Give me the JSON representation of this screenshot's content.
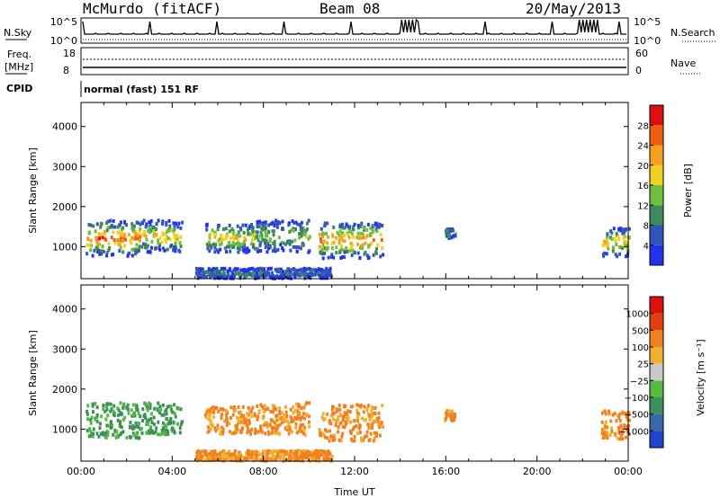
{
  "header": {
    "station": "McMurdo (fitACF)",
    "beam": "Beam 08",
    "date": "20/May/2013"
  },
  "nsky_panel": {
    "left_label": "N.Sky",
    "right_label": "N.Search",
    "left_ticks": [
      "10^5",
      "10^0"
    ],
    "right_ticks": [
      "10^5",
      "10^0"
    ]
  },
  "freq_panel": {
    "left_label_top": "Freq.",
    "left_label_bottom": "[MHz]",
    "right_label": "Nave",
    "left_ticks": [
      "18",
      "8"
    ],
    "right_ticks": [
      "60",
      "0"
    ]
  },
  "cpid": {
    "label": "CPID",
    "mode": "normal (fast) 151 RF"
  },
  "chart_data": [
    {
      "type": "heatmap",
      "title": "",
      "ylabel": "Slant Range [km]",
      "xlabel": "",
      "y_ticks": [
        "1000",
        "2000",
        "3000",
        "4000"
      ],
      "ylim": [
        200,
        4600
      ],
      "xlim": [
        "00:00",
        "24:00"
      ],
      "colorbar": {
        "label": "Power [dB]",
        "ticks": [
          "4",
          "8",
          "12",
          "16",
          "20",
          "24",
          "28"
        ],
        "colors": [
          "#2233ee",
          "#3355bb",
          "#3f8a5a",
          "#6fbf3f",
          "#f0d020",
          "#f4a020",
          "#ee6010",
          "#dd1010"
        ]
      }
    },
    {
      "type": "heatmap",
      "title": "",
      "ylabel": "Slant Range [km]",
      "xlabel": "Time UT",
      "y_ticks": [
        "1000",
        "2000",
        "3000",
        "4000"
      ],
      "ylim": [
        200,
        4600
      ],
      "x_ticks": [
        "00:00",
        "04:00",
        "08:00",
        "12:00",
        "16:00",
        "20:00",
        "00:00"
      ],
      "colorbar": {
        "label": "Velocity [m s⁻¹]",
        "ticks": [
          "1000",
          "500",
          "100",
          "25",
          "−25",
          "−100",
          "−500",
          "−1000"
        ],
        "colors": [
          "#2244cc",
          "#3a66aa",
          "#3f8f5a",
          "#55bb40",
          "#c8c8c8",
          "#f0b030",
          "#f08020",
          "#e04010",
          "#dd1010"
        ]
      }
    }
  ],
  "colors": {
    "power_scale": [
      "#2233ee",
      "#3355bb",
      "#3f8a5a",
      "#6fbf3f",
      "#f0d020",
      "#f4a020",
      "#ee6010",
      "#dd1010"
    ],
    "velocity_scale": [
      "#2244cc",
      "#3a66aa",
      "#3f8f5a",
      "#55bb40",
      "#c8c8c8",
      "#f0b030",
      "#f08020",
      "#e04010",
      "#dd1010"
    ]
  }
}
